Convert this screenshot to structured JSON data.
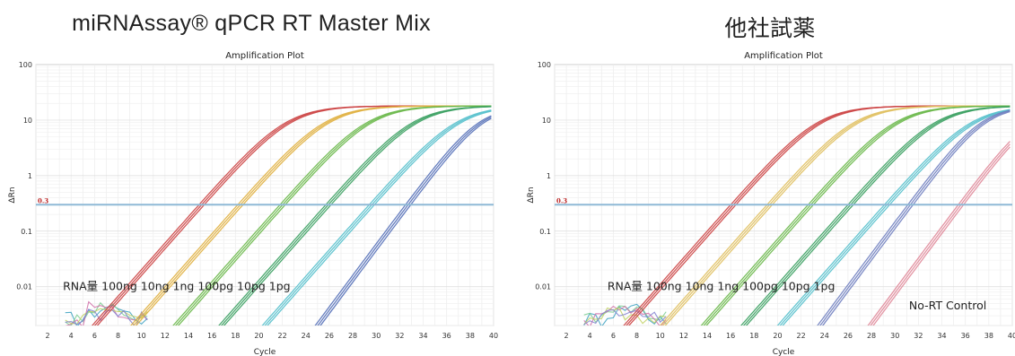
{
  "chart_data": [
    {
      "type": "line",
      "heading": "miRNAssay® qPCR RT Master Mix",
      "title": "Amplification Plot",
      "xlabel": "Cycle",
      "ylabel": "ΔRn",
      "xlim": [
        1,
        40
      ],
      "ylim": [
        0.002,
        100
      ],
      "y_scale": "log",
      "x_ticks": [
        2,
        4,
        6,
        8,
        10,
        12,
        14,
        16,
        18,
        20,
        22,
        24,
        26,
        28,
        30,
        32,
        34,
        36,
        38,
        40
      ],
      "y_ticks": [
        {
          "v": 100,
          "label": "100"
        },
        {
          "v": 10,
          "label": "10"
        },
        {
          "v": 1,
          "label": "1"
        },
        {
          "v": 0.1,
          "label": "0.1"
        },
        {
          "v": 0.01,
          "label": "0.01"
        }
      ],
      "threshold": {
        "value": 0.3,
        "label": "0.3",
        "color": "#8fb9d6"
      },
      "grid": true,
      "annotations": [
        {
          "text": "RNA量  100ng  10ng  1ng  100pg  10pg  1pg",
          "x": 3.3,
          "y": 0.01
        }
      ],
      "series": [
        {
          "label": "100ng",
          "color": "#cc4444",
          "ct": 15.1,
          "replicates": 3
        },
        {
          "label": "10ng",
          "color": "#e0b040",
          "ct": 18.4,
          "replicates": 3
        },
        {
          "label": "1ng",
          "color": "#6ab84a",
          "ct": 22.0,
          "replicates": 3
        },
        {
          "label": "100pg",
          "color": "#3aa060",
          "ct": 25.9,
          "replicates": 3
        },
        {
          "label": "10pg",
          "color": "#55c0cc",
          "ct": 29.6,
          "replicates": 3
        },
        {
          "label": "1pg",
          "color": "#5570b8",
          "ct": 32.7,
          "replicates": 3
        }
      ],
      "noise_colors": [
        "#3aa0c0",
        "#7acc90",
        "#d070a8",
        "#c0d060",
        "#8080d0"
      ]
    },
    {
      "type": "line",
      "heading": "他社試薬",
      "title": "Amplification Plot",
      "xlabel": "Cycle",
      "ylabel": "ΔRn",
      "xlim": [
        1,
        40
      ],
      "ylim": [
        0.002,
        100
      ],
      "y_scale": "log",
      "x_ticks": [
        2,
        4,
        6,
        8,
        10,
        12,
        14,
        16,
        18,
        20,
        22,
        24,
        26,
        28,
        30,
        32,
        34,
        36,
        38,
        40
      ],
      "y_ticks": [
        {
          "v": 100,
          "label": "100"
        },
        {
          "v": 10,
          "label": "10"
        },
        {
          "v": 1,
          "label": "1"
        },
        {
          "v": 0.1,
          "label": "0.1"
        },
        {
          "v": 0.01,
          "label": "0.01"
        }
      ],
      "threshold": {
        "value": 0.3,
        "label": "0.3",
        "color": "#8fb9d6"
      },
      "grid": true,
      "annotations": [
        {
          "text": "RNA量  100ng 10ng 1ng 100pg  10pg  1pg",
          "x": 5.5,
          "y": 0.01
        },
        {
          "text": "No-RT Control",
          "x": 31.2,
          "y": 0.0045
        }
      ],
      "series": [
        {
          "label": "100ng",
          "color": "#cc4444",
          "ct": 16.2,
          "replicates": 3
        },
        {
          "label": "10ng",
          "color": "#e0c060",
          "ct": 19.3,
          "replicates": 3
        },
        {
          "label": "1ng",
          "color": "#6ab84a",
          "ct": 22.8,
          "replicates": 3
        },
        {
          "label": "100pg",
          "color": "#3aa060",
          "ct": 26.2,
          "replicates": 3
        },
        {
          "label": "10pg",
          "color": "#55c0cc",
          "ct": 29.3,
          "replicates": 3
        },
        {
          "label": "1pg",
          "color": "#7080c0",
          "ct": 31.3,
          "replicates": 3
        },
        {
          "label": "No-RT Control",
          "color": "#e08a9a",
          "ct": 35.6,
          "replicates": 3
        }
      ],
      "noise_colors": [
        "#3aa0c0",
        "#7acc90",
        "#d070a8",
        "#c0d060",
        "#8080d0"
      ]
    }
  ]
}
